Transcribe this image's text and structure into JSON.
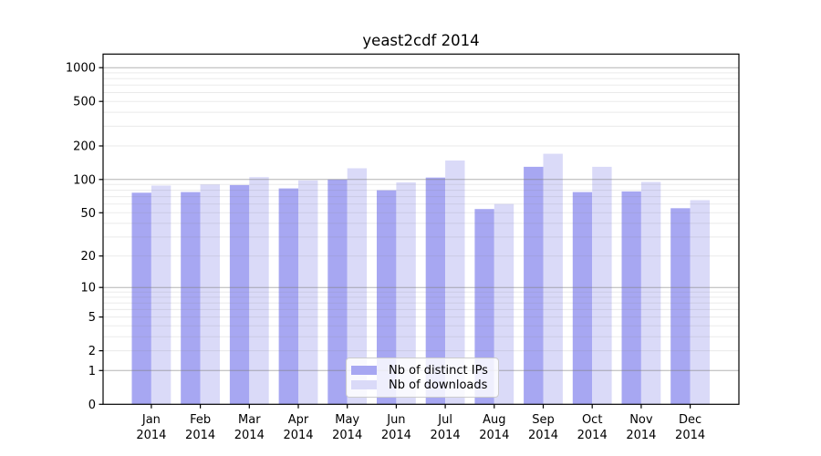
{
  "chart_data": {
    "type": "bar",
    "title": "yeast2cdf 2014",
    "categories": [
      "Jan",
      "Feb",
      "Mar",
      "Apr",
      "May",
      "Jun",
      "Jul",
      "Aug",
      "Sep",
      "Oct",
      "Nov",
      "Dec"
    ],
    "year_label": "2014",
    "series": [
      {
        "name": "Nb of distinct IPs",
        "color": "#a7a7f2",
        "values": [
          76,
          77,
          89,
          83,
          100,
          80,
          104,
          54,
          130,
          77,
          78,
          55
        ]
      },
      {
        "name": "Nb of downloads",
        "color": "#dadaf8",
        "values": [
          88,
          90,
          105,
          98,
          126,
          94,
          148,
          60,
          170,
          130,
          95,
          65
        ]
      }
    ],
    "yscale": "log1p",
    "yticks": [
      1000,
      500,
      200,
      100,
      50,
      20,
      10,
      5,
      2,
      1,
      0
    ],
    "ylim": [
      0,
      1320
    ],
    "xlabel": "",
    "ylabel": "",
    "grid": true,
    "grid_over_bars": true,
    "legend_position": "lower center"
  },
  "colors": {
    "background": "#ffffff",
    "axis": "#000000",
    "tick_text": "#000000",
    "grid_major": "#808080",
    "grid_minor": "#808080",
    "legend_border": "#cccccc"
  }
}
